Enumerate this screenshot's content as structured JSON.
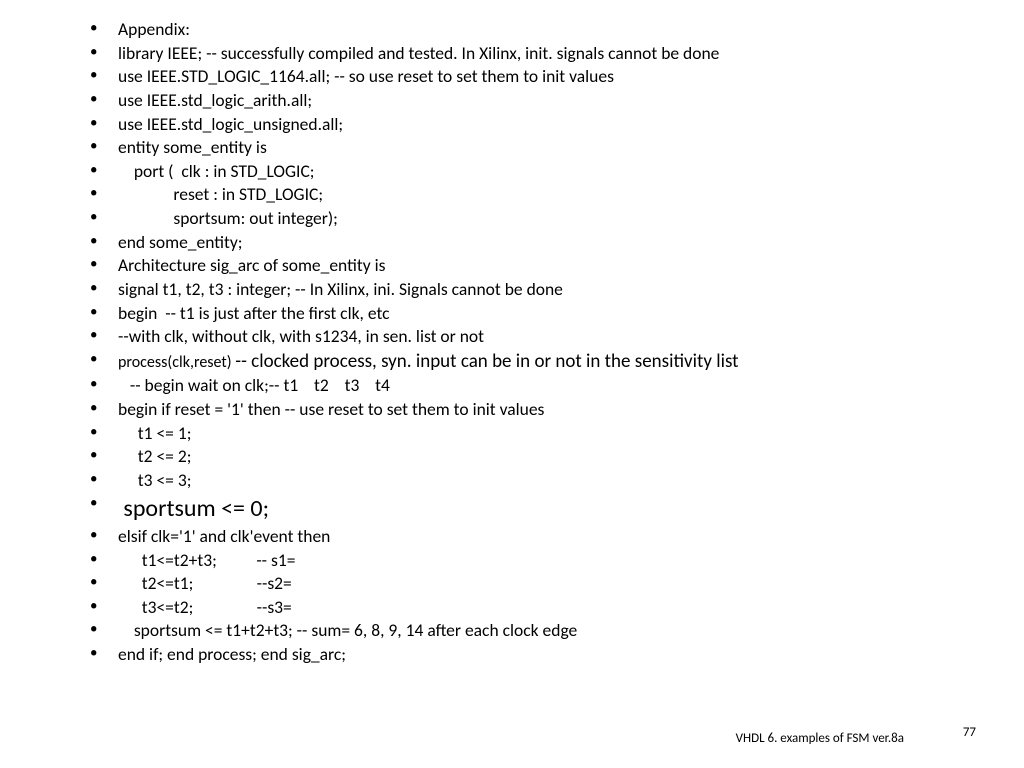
{
  "lines": [
    {
      "cls": "fs-small",
      "text": "Appendix:"
    },
    {
      "cls": "fs-small",
      "text": "library IEEE; -- successfully compiled and tested. In Xilinx, init. signals cannot be done"
    },
    {
      "cls": "fs-small",
      "text": "use IEEE.STD_LOGIC_1164.all; -- so use reset to set them to init values"
    },
    {
      "cls": "fs-small",
      "text": "use IEEE.std_logic_arith.all;"
    },
    {
      "cls": "fs-small",
      "text": "use IEEE.std_logic_unsigned.all;"
    },
    {
      "cls": "fs-small",
      "text": "entity some_entity is"
    },
    {
      "cls": "fs-small",
      "text": "    port (  clk : in STD_LOGIC;"
    },
    {
      "cls": "fs-small",
      "text": "              reset : in STD_LOGIC;"
    },
    {
      "cls": "fs-small",
      "text": "              sportsum: out integer);"
    },
    {
      "cls": "fs-small",
      "text": "end some_entity;"
    },
    {
      "cls": "fs-small",
      "text": "Architecture sig_arc of some_entity is"
    },
    {
      "cls": "fs-small",
      "text": "signal t1, t2, t3 : integer; -- In Xilinx, ini. Signals cannot be done"
    },
    {
      "cls": "fs-small",
      "text": "begin  -- t1 is just after the first clk, etc"
    },
    {
      "cls": "fs-small",
      "text": "--with clk, without clk, with s1234, in sen. list or not"
    },
    {
      "cls": "fs-med",
      "text": "process(clk,reset) -- clocked process, syn. input can be in or not in the sensitivity list",
      "mixed": true
    },
    {
      "cls": "fs-small",
      "text": "   -- begin wait on clk;-- t1    t2    t3    t4"
    },
    {
      "cls": "fs-small",
      "text": "begin if reset = '1' then -- use reset to set them to init values"
    },
    {
      "cls": "fs-small",
      "text": "     t1 <= 1;"
    },
    {
      "cls": "fs-small",
      "text": "     t2 <= 2;"
    },
    {
      "cls": "fs-small",
      "text": "     t3 <= 3;"
    },
    {
      "cls": "fs-big",
      "text": " sportsum <= 0;"
    },
    {
      "cls": "fs-small",
      "text": "elsif clk='1' and clk'event then"
    },
    {
      "cls": "fs-small",
      "text": "      t1<=t2+t3;          -- s1="
    },
    {
      "cls": "fs-small",
      "text": "      t2<=t1;                --s2="
    },
    {
      "cls": "fs-small",
      "text": "      t3<=t2;                --s3="
    },
    {
      "cls": "fs-small",
      "text": "    sportsum <= t1+t2+t3; -- sum= 6, 8, 9, 14 after each clock edge"
    },
    {
      "cls": "fs-small",
      "text": "end if; end process; end sig_arc;"
    }
  ],
  "mixed_line": {
    "left": "process(clk,reset) ",
    "left_size": "16px",
    "right": "-- clocked process, syn. input can be in or not in the sensitivity list",
    "right_size": "19px"
  },
  "footer": "VHDL 6. examples of FSM ver.8a",
  "page": "77"
}
